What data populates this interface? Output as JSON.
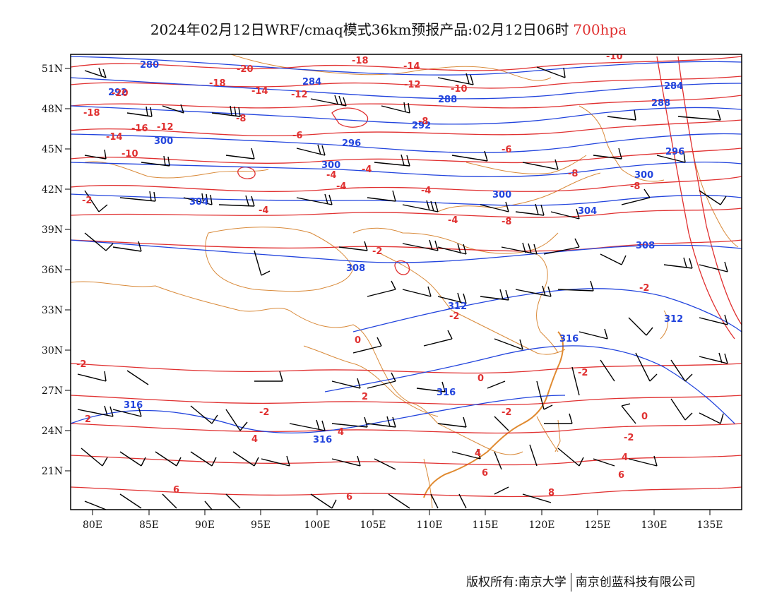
{
  "title": {
    "main": "2024年02月12日WRF/cmaq模式36km预报产品:02月12日06时",
    "level": "700hpa",
    "level_color": "#e03030"
  },
  "colors": {
    "geopotential": "#2244dd",
    "temperature": "#e03030",
    "borders": "#d98a3a",
    "wind": "#000000"
  },
  "axes": {
    "lon_ticks": [
      "80E",
      "85E",
      "90E",
      "95E",
      "100E",
      "105E",
      "110E",
      "115E",
      "120E",
      "125E",
      "130E",
      "135E"
    ],
    "lat_ticks": [
      "51N",
      "48N",
      "45N",
      "42N",
      "39N",
      "36N",
      "33N",
      "30N",
      "27N",
      "24N",
      "21N"
    ]
  },
  "geopotential_labels": [
    "280",
    "284",
    "288",
    "292",
    "296",
    "300",
    "304",
    "308",
    "312",
    "316"
  ],
  "temperature_labels": [
    "-20",
    "-18",
    "-16",
    "-14",
    "-12",
    "-10",
    "-8",
    "-6",
    "-4",
    "-2",
    "0",
    "2",
    "4",
    "6",
    "8"
  ],
  "copyright": {
    "left": "版权所有:南京大学",
    "right": "南京创蓝科技有限公司"
  }
}
